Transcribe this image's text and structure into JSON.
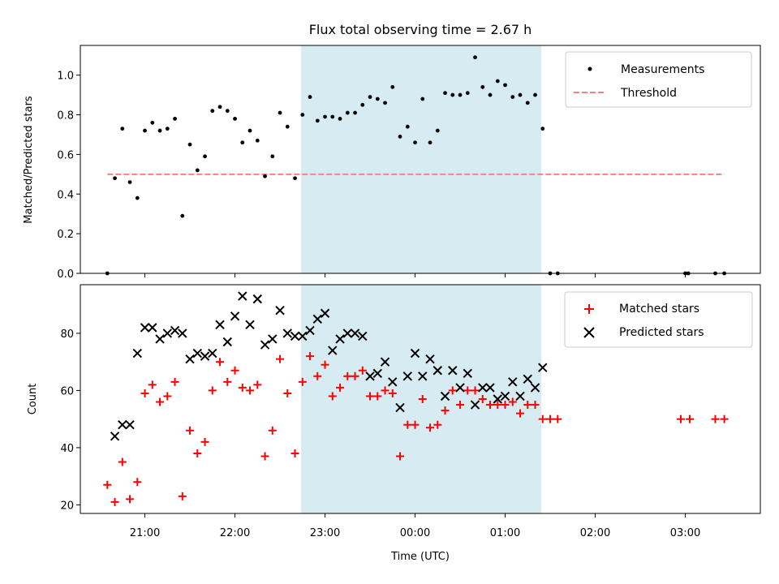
{
  "title": "Flux total observing time = 2.67 h",
  "colors": {
    "matched": "#ff0000",
    "predicted": "#000000",
    "measurement": "#000000",
    "threshold": "#ff7f7f",
    "highlight": "#add8e6"
  },
  "chart_data": [
    {
      "type": "scatter",
      "ylabel": "Matched/Predicted stars",
      "ylim": [
        0,
        1.15
      ],
      "y_ticks": [
        0.0,
        0.2,
        0.4,
        0.6,
        0.8,
        1.0
      ],
      "y_tick_labels": [
        "0.0",
        "0.2",
        "0.4",
        "0.6",
        "0.8",
        "1.0"
      ],
      "xlim": [
        "20:17",
        "03:50"
      ],
      "highlight_span": [
        "22:44",
        "01:24"
      ],
      "legend_position": "upper right",
      "series": [
        {
          "name": "Measurements",
          "marker": "dot",
          "points": [
            [
              "20:35",
              0.0
            ],
            [
              "20:40",
              0.48
            ],
            [
              "20:45",
              0.73
            ],
            [
              "20:50",
              0.46
            ],
            [
              "20:55",
              0.38
            ],
            [
              "21:00",
              0.72
            ],
            [
              "21:05",
              0.76
            ],
            [
              "21:10",
              0.72
            ],
            [
              "21:15",
              0.73
            ],
            [
              "21:20",
              0.78
            ],
            [
              "21:25",
              0.29
            ],
            [
              "21:30",
              0.65
            ],
            [
              "21:35",
              0.52
            ],
            [
              "21:40",
              0.59
            ],
            [
              "21:45",
              0.82
            ],
            [
              "21:50",
              0.84
            ],
            [
              "21:55",
              0.82
            ],
            [
              "22:00",
              0.78
            ],
            [
              "22:05",
              0.66
            ],
            [
              "22:10",
              0.72
            ],
            [
              "22:15",
              0.67
            ],
            [
              "22:20",
              0.49
            ],
            [
              "22:25",
              0.59
            ],
            [
              "22:30",
              0.81
            ],
            [
              "22:35",
              0.74
            ],
            [
              "22:40",
              0.48
            ],
            [
              "22:45",
              0.8
            ],
            [
              "22:50",
              0.89
            ],
            [
              "22:55",
              0.77
            ],
            [
              "23:00",
              0.79
            ],
            [
              "23:05",
              0.79
            ],
            [
              "23:10",
              0.78
            ],
            [
              "23:15",
              0.81
            ],
            [
              "23:20",
              0.81
            ],
            [
              "23:25",
              0.85
            ],
            [
              "23:30",
              0.89
            ],
            [
              "23:35",
              0.88
            ],
            [
              "23:40",
              0.86
            ],
            [
              "23:45",
              0.94
            ],
            [
              "23:50",
              0.69
            ],
            [
              "23:55",
              0.74
            ],
            [
              "00:00",
              0.66
            ],
            [
              "00:05",
              0.88
            ],
            [
              "00:10",
              0.66
            ],
            [
              "00:15",
              0.72
            ],
            [
              "00:20",
              0.91
            ],
            [
              "00:25",
              0.9
            ],
            [
              "00:30",
              0.9
            ],
            [
              "00:35",
              0.91
            ],
            [
              "00:40",
              1.09
            ],
            [
              "00:45",
              0.94
            ],
            [
              "00:50",
              0.9
            ],
            [
              "00:55",
              0.97
            ],
            [
              "01:00",
              0.95
            ],
            [
              "01:05",
              0.89
            ],
            [
              "01:10",
              0.9
            ],
            [
              "01:15",
              0.86
            ],
            [
              "01:20",
              0.9
            ],
            [
              "01:25",
              0.73
            ],
            [
              "01:30",
              0.0
            ],
            [
              "01:35",
              0.0
            ],
            [
              "03:00",
              0.0
            ],
            [
              "03:02",
              0.0
            ],
            [
              "03:20",
              0.0
            ],
            [
              "03:26",
              0.0
            ]
          ]
        },
        {
          "name": "Threshold",
          "marker": "dashed-line",
          "points": [
            [
              "20:35",
              0.5
            ],
            [
              "03:26",
              0.5
            ]
          ]
        }
      ]
    },
    {
      "type": "scatter",
      "ylabel": "Count",
      "xlabel": "Time (UTC)",
      "ylim": [
        17,
        97
      ],
      "y_ticks": [
        20,
        40,
        60,
        80
      ],
      "y_tick_labels": [
        "20",
        "40",
        "60",
        "80"
      ],
      "xlim": [
        "20:17",
        "03:50"
      ],
      "x_ticks": [
        "21:00",
        "22:00",
        "23:00",
        "00:00",
        "01:00",
        "02:00",
        "03:00"
      ],
      "highlight_span": [
        "22:44",
        "01:24"
      ],
      "legend_position": "upper right",
      "series": [
        {
          "name": "Matched stars",
          "marker": "plus",
          "points": [
            [
              "20:35",
              27
            ],
            [
              "20:40",
              21
            ],
            [
              "20:45",
              35
            ],
            [
              "20:50",
              22
            ],
            [
              "20:55",
              28
            ],
            [
              "21:00",
              59
            ],
            [
              "21:05",
              62
            ],
            [
              "21:10",
              56
            ],
            [
              "21:15",
              58
            ],
            [
              "21:20",
              63
            ],
            [
              "21:25",
              23
            ],
            [
              "21:30",
              46
            ],
            [
              "21:35",
              38
            ],
            [
              "21:40",
              42
            ],
            [
              "21:45",
              60
            ],
            [
              "21:50",
              70
            ],
            [
              "21:55",
              63
            ],
            [
              "22:00",
              67
            ],
            [
              "22:05",
              61
            ],
            [
              "22:10",
              60
            ],
            [
              "22:15",
              62
            ],
            [
              "22:20",
              37
            ],
            [
              "22:25",
              46
            ],
            [
              "22:30",
              71
            ],
            [
              "22:35",
              59
            ],
            [
              "22:40",
              38
            ],
            [
              "22:45",
              63
            ],
            [
              "22:50",
              72
            ],
            [
              "22:55",
              65
            ],
            [
              "23:00",
              69
            ],
            [
              "23:05",
              58
            ],
            [
              "23:10",
              61
            ],
            [
              "23:15",
              65
            ],
            [
              "23:20",
              65
            ],
            [
              "23:25",
              67
            ],
            [
              "23:30",
              58
            ],
            [
              "23:35",
              58
            ],
            [
              "23:40",
              60
            ],
            [
              "23:45",
              59
            ],
            [
              "23:50",
              37
            ],
            [
              "23:55",
              48
            ],
            [
              "00:00",
              48
            ],
            [
              "00:05",
              57
            ],
            [
              "00:10",
              47
            ],
            [
              "00:15",
              48
            ],
            [
              "00:20",
              53
            ],
            [
              "00:25",
              60
            ],
            [
              "00:30",
              55
            ],
            [
              "00:35",
              60
            ],
            [
              "00:40",
              60
            ],
            [
              "00:45",
              57
            ],
            [
              "00:50",
              55
            ],
            [
              "00:55",
              55
            ],
            [
              "01:00",
              55
            ],
            [
              "01:05",
              56
            ],
            [
              "01:10",
              52
            ],
            [
              "01:15",
              55
            ],
            [
              "01:20",
              55
            ],
            [
              "01:25",
              50
            ],
            [
              "01:30",
              50
            ],
            [
              "01:35",
              50
            ],
            [
              "02:57",
              50
            ],
            [
              "03:03",
              50
            ],
            [
              "03:20",
              50
            ],
            [
              "03:26",
              50
            ]
          ]
        },
        {
          "name": "Predicted stars",
          "marker": "x",
          "points": [
            [
              "20:40",
              44
            ],
            [
              "20:45",
              48
            ],
            [
              "20:50",
              48
            ],
            [
              "20:55",
              73
            ],
            [
              "21:00",
              82
            ],
            [
              "21:05",
              82
            ],
            [
              "21:10",
              78
            ],
            [
              "21:15",
              80
            ],
            [
              "21:20",
              81
            ],
            [
              "21:25",
              80
            ],
            [
              "21:30",
              71
            ],
            [
              "21:35",
              73
            ],
            [
              "21:40",
              72
            ],
            [
              "21:45",
              73
            ],
            [
              "21:50",
              83
            ],
            [
              "21:55",
              77
            ],
            [
              "22:00",
              86
            ],
            [
              "22:05",
              93
            ],
            [
              "22:10",
              83
            ],
            [
              "22:15",
              92
            ],
            [
              "22:20",
              76
            ],
            [
              "22:25",
              78
            ],
            [
              "22:30",
              88
            ],
            [
              "22:35",
              80
            ],
            [
              "22:40",
              79
            ],
            [
              "22:45",
              79
            ],
            [
              "22:50",
              81
            ],
            [
              "22:55",
              85
            ],
            [
              "23:00",
              87
            ],
            [
              "23:05",
              74
            ],
            [
              "23:10",
              78
            ],
            [
              "23:15",
              80
            ],
            [
              "23:20",
              80
            ],
            [
              "23:25",
              79
            ],
            [
              "23:30",
              65
            ],
            [
              "23:35",
              66
            ],
            [
              "23:40",
              70
            ],
            [
              "23:45",
              63
            ],
            [
              "23:50",
              54
            ],
            [
              "23:55",
              65
            ],
            [
              "00:00",
              73
            ],
            [
              "00:05",
              65
            ],
            [
              "00:10",
              71
            ],
            [
              "00:15",
              67
            ],
            [
              "00:20",
              58
            ],
            [
              "00:25",
              67
            ],
            [
              "00:30",
              61
            ],
            [
              "00:35",
              66
            ],
            [
              "00:40",
              55
            ],
            [
              "00:45",
              61
            ],
            [
              "00:50",
              61
            ],
            [
              "00:55",
              57
            ],
            [
              "01:00",
              58
            ],
            [
              "01:05",
              63
            ],
            [
              "01:10",
              58
            ],
            [
              "01:15",
              64
            ],
            [
              "01:20",
              61
            ],
            [
              "01:25",
              68
            ]
          ]
        }
      ]
    }
  ]
}
